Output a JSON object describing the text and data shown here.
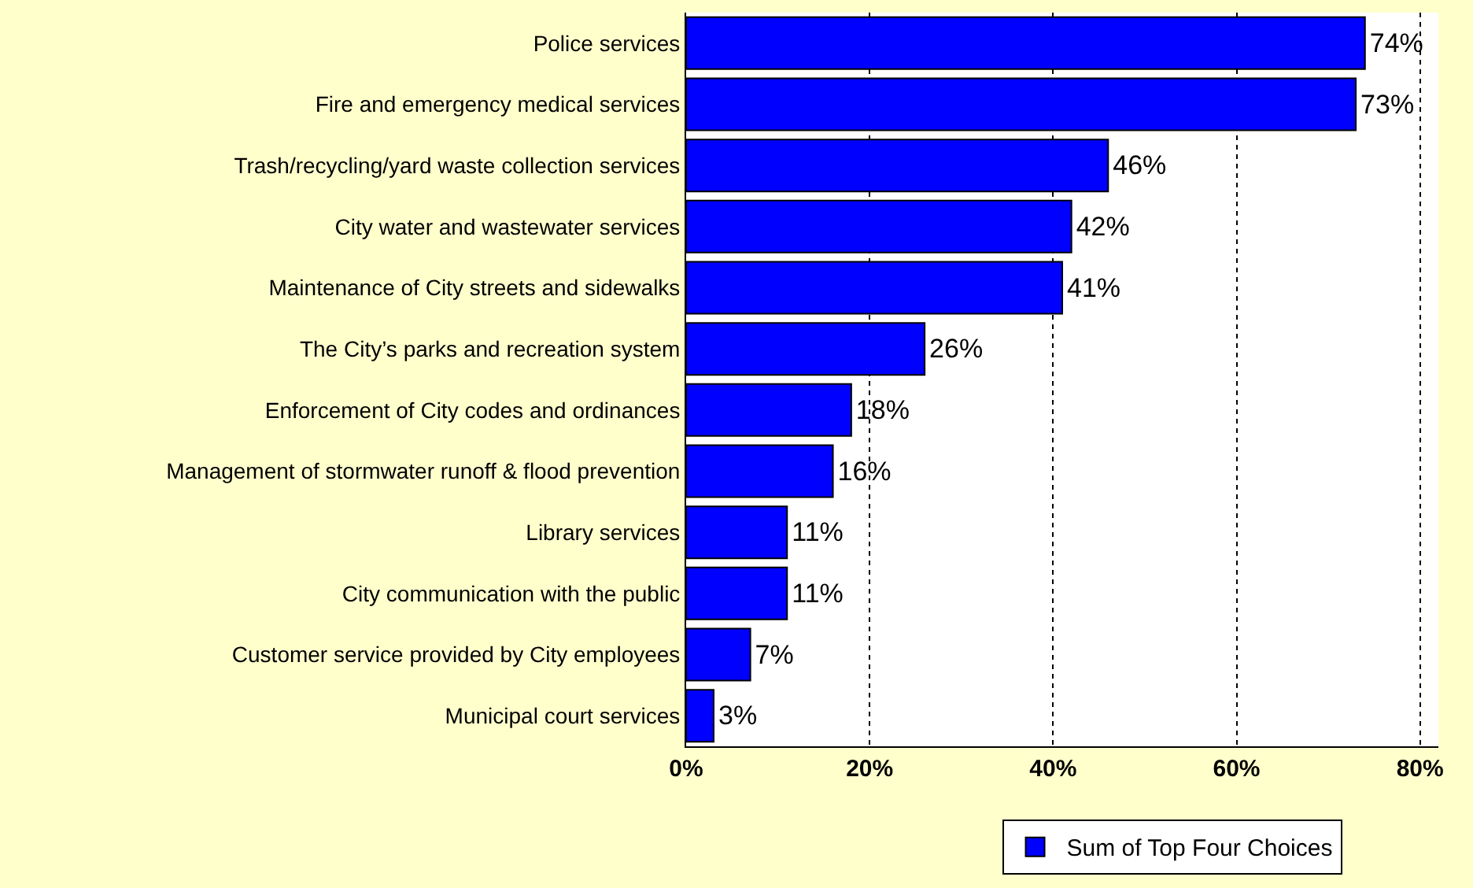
{
  "chart_data": {
    "type": "bar",
    "orientation": "horizontal",
    "categories": [
      "Police services",
      "Fire and emergency medical services",
      "Trash/recycling/yard waste collection services",
      "City water and wastewater services",
      "Maintenance of City streets and sidewalks",
      "The City’s parks and recreation system",
      "Enforcement of City codes and ordinances",
      "Management of stormwater runoff & flood prevention",
      "Library services",
      "City communication with the public",
      "Customer service provided by City employees",
      "Municipal court services"
    ],
    "series": [
      {
        "name": "Sum of Top Four Choices",
        "color": "#0000ff",
        "values": [
          74,
          73,
          46,
          42,
          41,
          26,
          18,
          16,
          11,
          11,
          7,
          3
        ],
        "value_labels": [
          "74%",
          "73%",
          "46%",
          "42%",
          "41%",
          "26%",
          "18%",
          "16%",
          "11%",
          "11%",
          "7%",
          "3%"
        ]
      }
    ],
    "xlim": [
      0,
      82
    ],
    "xticks": [
      {
        "value": 0,
        "label": "0%"
      },
      {
        "value": 20,
        "label": "20%"
      },
      {
        "value": 40,
        "label": "40%"
      },
      {
        "value": 60,
        "label": "60%"
      },
      {
        "value": 80,
        "label": "80%"
      }
    ],
    "grid": "x",
    "legend": "bottom"
  }
}
